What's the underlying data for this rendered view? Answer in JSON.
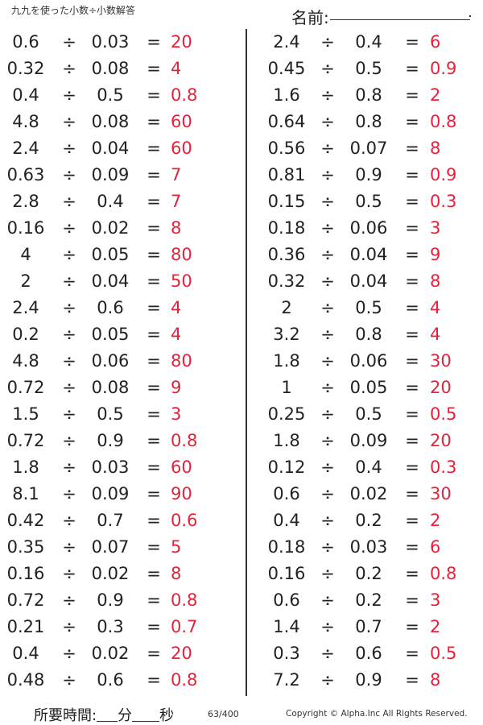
{
  "header": {
    "title": "九九を使った小数÷小数解答",
    "name_label": "名前:"
  },
  "operator": "÷",
  "equals": "=",
  "left_problems": [
    {
      "a": "0.6",
      "b": "0.03",
      "ans": "20"
    },
    {
      "a": "0.32",
      "b": "0.08",
      "ans": "4"
    },
    {
      "a": "0.4",
      "b": "0.5",
      "ans": "0.8"
    },
    {
      "a": "4.8",
      "b": "0.08",
      "ans": "60"
    },
    {
      "a": "2.4",
      "b": "0.04",
      "ans": "60"
    },
    {
      "a": "0.63",
      "b": "0.09",
      "ans": "7"
    },
    {
      "a": "2.8",
      "b": "0.4",
      "ans": "7"
    },
    {
      "a": "0.16",
      "b": "0.02",
      "ans": "8"
    },
    {
      "a": "4",
      "b": "0.05",
      "ans": "80"
    },
    {
      "a": "2",
      "b": "0.04",
      "ans": "50"
    },
    {
      "a": "2.4",
      "b": "0.6",
      "ans": "4"
    },
    {
      "a": "0.2",
      "b": "0.05",
      "ans": "4"
    },
    {
      "a": "4.8",
      "b": "0.06",
      "ans": "80"
    },
    {
      "a": "0.72",
      "b": "0.08",
      "ans": "9"
    },
    {
      "a": "1.5",
      "b": "0.5",
      "ans": "3"
    },
    {
      "a": "0.72",
      "b": "0.9",
      "ans": "0.8"
    },
    {
      "a": "1.8",
      "b": "0.03",
      "ans": "60"
    },
    {
      "a": "8.1",
      "b": "0.09",
      "ans": "90"
    },
    {
      "a": "0.42",
      "b": "0.7",
      "ans": "0.6"
    },
    {
      "a": "0.35",
      "b": "0.07",
      "ans": "5"
    },
    {
      "a": "0.16",
      "b": "0.02",
      "ans": "8"
    },
    {
      "a": "0.72",
      "b": "0.9",
      "ans": "0.8"
    },
    {
      "a": "0.21",
      "b": "0.3",
      "ans": "0.7"
    },
    {
      "a": "0.4",
      "b": "0.02",
      "ans": "20"
    },
    {
      "a": "0.48",
      "b": "0.6",
      "ans": "0.8"
    }
  ],
  "right_problems": [
    {
      "a": "2.4",
      "b": "0.4",
      "ans": "6"
    },
    {
      "a": "0.45",
      "b": "0.5",
      "ans": "0.9"
    },
    {
      "a": "1.6",
      "b": "0.8",
      "ans": "2"
    },
    {
      "a": "0.64",
      "b": "0.8",
      "ans": "0.8"
    },
    {
      "a": "0.56",
      "b": "0.07",
      "ans": "8"
    },
    {
      "a": "0.81",
      "b": "0.9",
      "ans": "0.9"
    },
    {
      "a": "0.15",
      "b": "0.5",
      "ans": "0.3"
    },
    {
      "a": "0.18",
      "b": "0.06",
      "ans": "3"
    },
    {
      "a": "0.36",
      "b": "0.04",
      "ans": "9"
    },
    {
      "a": "0.32",
      "b": "0.04",
      "ans": "8"
    },
    {
      "a": "2",
      "b": "0.5",
      "ans": "4"
    },
    {
      "a": "3.2",
      "b": "0.8",
      "ans": "4"
    },
    {
      "a": "1.8",
      "b": "0.06",
      "ans": "30"
    },
    {
      "a": "1",
      "b": "0.05",
      "ans": "20"
    },
    {
      "a": "0.25",
      "b": "0.5",
      "ans": "0.5"
    },
    {
      "a": "1.8",
      "b": "0.09",
      "ans": "20"
    },
    {
      "a": "0.12",
      "b": "0.4",
      "ans": "0.3"
    },
    {
      "a": "0.6",
      "b": "0.02",
      "ans": "30"
    },
    {
      "a": "0.4",
      "b": "0.2",
      "ans": "2"
    },
    {
      "a": "0.18",
      "b": "0.03",
      "ans": "6"
    },
    {
      "a": "0.16",
      "b": "0.2",
      "ans": "0.8"
    },
    {
      "a": "0.6",
      "b": "0.2",
      "ans": "3"
    },
    {
      "a": "1.4",
      "b": "0.7",
      "ans": "2"
    },
    {
      "a": "0.3",
      "b": "0.6",
      "ans": "0.5"
    },
    {
      "a": "7.2",
      "b": "0.9",
      "ans": "8"
    }
  ],
  "footer": {
    "time_label": "所要時間:",
    "minutes_unit": "分",
    "seconds_unit": "秒",
    "page": "63/400",
    "copyright": "Copyright © Alpha.Inc All Rights Reserved."
  },
  "colors": {
    "answer": "#e8213a",
    "text": "#222222"
  }
}
